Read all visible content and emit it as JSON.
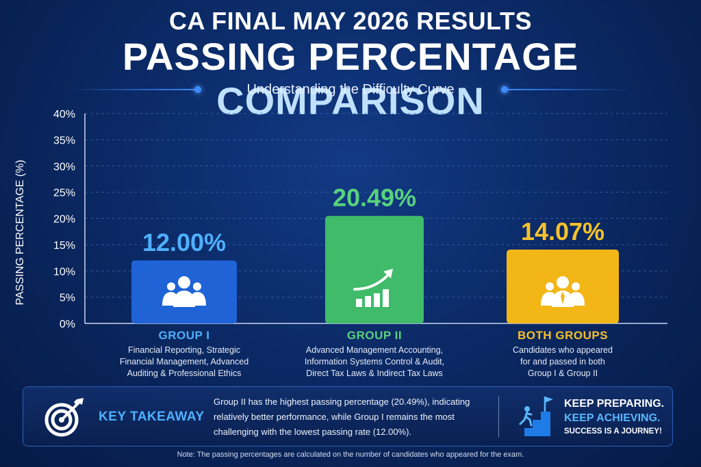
{
  "header": {
    "top_title": "CA FINAL MAY 2026 RESULTS",
    "main_title_part1": "PASSING PERCENTAGE",
    "main_title_part2": "COMPARISON",
    "subtitle": "Understanding the Difficulty Curve"
  },
  "chart_data": {
    "type": "bar",
    "title": "PASSING PERCENTAGE COMPARISON",
    "subtitle": "Understanding the Difficulty Curve",
    "ylabel": "PASSING PERCENTAGE (%)",
    "xlabel": "",
    "ylim": [
      0,
      40
    ],
    "yticks": [
      0,
      5,
      10,
      15,
      20,
      25,
      30,
      35,
      40
    ],
    "ytick_labels": [
      "0%",
      "5%",
      "10%",
      "15%",
      "20%",
      "25%",
      "30%",
      "35%",
      "40%"
    ],
    "grid": true,
    "categories": [
      "GROUP I",
      "GROUP II",
      "BOTH GROUPS"
    ],
    "values": [
      12.0,
      20.49,
      14.07
    ],
    "value_labels": [
      "12.00%",
      "20.49%",
      "14.07%"
    ],
    "colors": [
      "#1f63d6",
      "#3fbb6a",
      "#f2b616"
    ],
    "label_colors": [
      "#4fb0ff",
      "#58d37d",
      "#f7c22a"
    ],
    "icons": [
      "group-icon",
      "growth-chart-icon",
      "team-leader-icon"
    ]
  },
  "categories": [
    {
      "title": "GROUP I",
      "desc": [
        "Financial Reporting, Strategic",
        "Financial Management, Advanced",
        "Auditing & Professional Ethics"
      ]
    },
    {
      "title": "GROUP II",
      "desc": [
        "Advanced Management Accounting,",
        "Information Systems Control & Audit,",
        "Direct Tax Laws & Indirect Tax Laws"
      ]
    },
    {
      "title": "BOTH GROUPS",
      "desc": [
        "Candidates who appeared",
        "for and passed in both",
        "Group I & Group II"
      ]
    }
  ],
  "takeaway": {
    "label": "KEY TAKEAWAY",
    "text": "Group II has the highest passing percentage (20.49%), indicating relatively better performance, while Group I remains the most challenging with the lowest passing rate (12.00%).",
    "keep1": "KEEP PREPARING.",
    "keep2": "KEEP ACHIEVING.",
    "keep3": "SUCCESS IS A JOURNEY!"
  },
  "note": "Note: The passing percentages are calculated on the number of candidates who appeared for the exam."
}
